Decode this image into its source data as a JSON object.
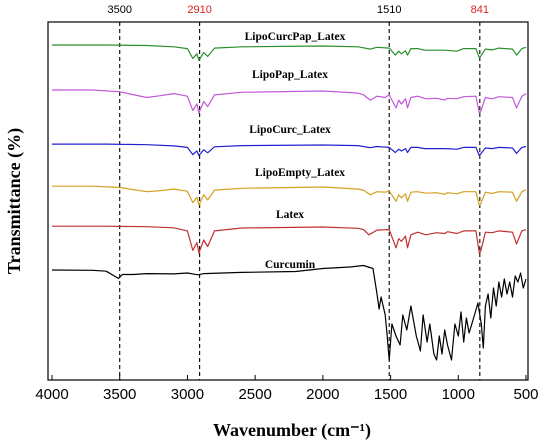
{
  "chart_data": {
    "type": "line",
    "xlabel": "Wavenumber (cm⁻¹)",
    "ylabel": "Transmittance (%)",
    "xlim": [
      4000,
      500
    ],
    "x_reversed": true,
    "x_ticks": [
      "4000",
      "3500",
      "3000",
      "2500",
      "2000",
      "1500",
      "1000",
      "500"
    ],
    "grid": false,
    "legend": "inline labels above each trace",
    "y_values_units": "arbitrary transmittance units, vertically offset traces",
    "reference_lines": [
      {
        "x": 3500,
        "label": "3500",
        "color": "#000000"
      },
      {
        "x": 2910,
        "label": "2910",
        "color": "#e02020"
      },
      {
        "x": 1510,
        "label": "1510",
        "color": "#000000"
      },
      {
        "x": 841,
        "label": "841",
        "color": "#e02020"
      }
    ],
    "series": [
      {
        "name": "LipoCurcPap_Latex",
        "color": "#2a8f2a",
        "points": [
          [
            4000,
            0.4
          ],
          [
            3600,
            0.4
          ],
          [
            3300,
            0.2
          ],
          [
            3100,
            -0.3
          ],
          [
            3000,
            -1.0
          ],
          [
            2960,
            -4.8
          ],
          [
            2930,
            -3.0
          ],
          [
            2915,
            -5.5
          ],
          [
            2880,
            -2.5
          ],
          [
            2850,
            -4.0
          ],
          [
            2800,
            -0.8
          ],
          [
            2600,
            -0.3
          ],
          [
            2000,
            0.0
          ],
          [
            1740,
            -0.3
          ],
          [
            1650,
            -1.2
          ],
          [
            1600,
            -0.5
          ],
          [
            1510,
            -0.8
          ],
          [
            1465,
            -3.5
          ],
          [
            1440,
            -2.0
          ],
          [
            1420,
            -3.0
          ],
          [
            1390,
            -1.8
          ],
          [
            1375,
            -3.5
          ],
          [
            1350,
            -1.0
          ],
          [
            1300,
            -1.0
          ],
          [
            1250,
            -1.6
          ],
          [
            1160,
            -1.6
          ],
          [
            1100,
            -1.6
          ],
          [
            1010,
            -2.0
          ],
          [
            960,
            -1.0
          ],
          [
            870,
            -1.0
          ],
          [
            845,
            -4.5
          ],
          [
            835,
            -4.0
          ],
          [
            800,
            -1.2
          ],
          [
            750,
            -1.5
          ],
          [
            700,
            -0.8
          ],
          [
            600,
            -1.2
          ],
          [
            570,
            -3.5
          ],
          [
            530,
            -1.0
          ],
          [
            500,
            -0.5
          ]
        ]
      },
      {
        "name": "LipoPap_Latex",
        "color": "#c258d8",
        "points": [
          [
            4000,
            0.4
          ],
          [
            3700,
            0.4
          ],
          [
            3500,
            -0.3
          ],
          [
            3300,
            -2.5
          ],
          [
            3200,
            -1.8
          ],
          [
            3100,
            -1.0
          ],
          [
            3000,
            -2.0
          ],
          [
            2960,
            -7.5
          ],
          [
            2930,
            -5.0
          ],
          [
            2915,
            -8.5
          ],
          [
            2880,
            -4.0
          ],
          [
            2850,
            -6.0
          ],
          [
            2800,
            -1.5
          ],
          [
            2600,
            -0.5
          ],
          [
            2000,
            0.0
          ],
          [
            1740,
            -0.8
          ],
          [
            1700,
            -1.5
          ],
          [
            1650,
            -3.5
          ],
          [
            1600,
            -2.0
          ],
          [
            1540,
            -2.5
          ],
          [
            1510,
            -1.5
          ],
          [
            1460,
            -6.5
          ],
          [
            1440,
            -3.5
          ],
          [
            1420,
            -5.0
          ],
          [
            1390,
            -3.0
          ],
          [
            1375,
            -6.5
          ],
          [
            1350,
            -2.5
          ],
          [
            1300,
            -2.0
          ],
          [
            1240,
            -3.0
          ],
          [
            1160,
            -2.8
          ],
          [
            1100,
            -3.5
          ],
          [
            1080,
            -2.8
          ],
          [
            1010,
            -3.0
          ],
          [
            960,
            -2.2
          ],
          [
            870,
            -2.0
          ],
          [
            845,
            -8.5
          ],
          [
            835,
            -8.0
          ],
          [
            800,
            -2.5
          ],
          [
            750,
            -3.0
          ],
          [
            700,
            -2.2
          ],
          [
            600,
            -2.5
          ],
          [
            570,
            -6.5
          ],
          [
            530,
            -2.0
          ],
          [
            500,
            -1.0
          ]
        ]
      },
      {
        "name": "LipoCurc_Latex",
        "color": "#2020d0",
        "points": [
          [
            4000,
            0.3
          ],
          [
            3600,
            0.3
          ],
          [
            3300,
            0.1
          ],
          [
            3100,
            -0.3
          ],
          [
            3000,
            -0.8
          ],
          [
            2960,
            -3.2
          ],
          [
            2930,
            -2.0
          ],
          [
            2915,
            -3.5
          ],
          [
            2880,
            -1.6
          ],
          [
            2850,
            -2.6
          ],
          [
            2800,
            -0.6
          ],
          [
            2600,
            -0.2
          ],
          [
            2000,
            0.0
          ],
          [
            1740,
            -0.2
          ],
          [
            1650,
            -0.9
          ],
          [
            1600,
            -0.5
          ],
          [
            1510,
            -0.8
          ],
          [
            1465,
            -2.5
          ],
          [
            1440,
            -1.4
          ],
          [
            1420,
            -2.0
          ],
          [
            1390,
            -1.2
          ],
          [
            1375,
            -2.5
          ],
          [
            1350,
            -0.8
          ],
          [
            1300,
            -0.8
          ],
          [
            1250,
            -1.2
          ],
          [
            1160,
            -1.2
          ],
          [
            1100,
            -1.2
          ],
          [
            1010,
            -1.4
          ],
          [
            960,
            -0.8
          ],
          [
            870,
            -0.8
          ],
          [
            845,
            -3.5
          ],
          [
            835,
            -3.0
          ],
          [
            800,
            -1.0
          ],
          [
            750,
            -1.2
          ],
          [
            700,
            -0.8
          ],
          [
            600,
            -1.0
          ],
          [
            570,
            -2.8
          ],
          [
            530,
            -0.8
          ],
          [
            500,
            -0.5
          ]
        ]
      },
      {
        "name": "LipoEmpty_Latex",
        "color": "#d4a020",
        "points": [
          [
            4000,
            0.3
          ],
          [
            3700,
            0.3
          ],
          [
            3500,
            -0.2
          ],
          [
            3300,
            -1.8
          ],
          [
            3200,
            -1.4
          ],
          [
            3100,
            -0.8
          ],
          [
            3000,
            -1.6
          ],
          [
            2960,
            -6.0
          ],
          [
            2930,
            -4.0
          ],
          [
            2915,
            -7.0
          ],
          [
            2880,
            -3.0
          ],
          [
            2850,
            -5.0
          ],
          [
            2800,
            -1.2
          ],
          [
            2600,
            -0.5
          ],
          [
            2000,
            0.0
          ],
          [
            1740,
            -0.8
          ],
          [
            1700,
            -1.2
          ],
          [
            1650,
            -3.0
          ],
          [
            1600,
            -1.8
          ],
          [
            1540,
            -2.0
          ],
          [
            1510,
            -1.5
          ],
          [
            1460,
            -5.5
          ],
          [
            1440,
            -3.0
          ],
          [
            1420,
            -4.2
          ],
          [
            1390,
            -2.6
          ],
          [
            1375,
            -5.5
          ],
          [
            1350,
            -2.0
          ],
          [
            1300,
            -1.8
          ],
          [
            1240,
            -2.4
          ],
          [
            1160,
            -2.2
          ],
          [
            1100,
            -2.8
          ],
          [
            1080,
            -2.2
          ],
          [
            1010,
            -2.6
          ],
          [
            960,
            -1.8
          ],
          [
            870,
            -1.8
          ],
          [
            845,
            -7.0
          ],
          [
            835,
            -6.5
          ],
          [
            800,
            -2.0
          ],
          [
            750,
            -2.5
          ],
          [
            700,
            -1.8
          ],
          [
            600,
            -2.0
          ],
          [
            570,
            -5.5
          ],
          [
            530,
            -1.8
          ],
          [
            500,
            -1.0
          ]
        ]
      },
      {
        "name": "Latex",
        "color": "#c03030",
        "points": [
          [
            4000,
            0.3
          ],
          [
            3600,
            0.3
          ],
          [
            3300,
            0.1
          ],
          [
            3100,
            -0.3
          ],
          [
            3000,
            -1.5
          ],
          [
            2960,
            -9.0
          ],
          [
            2930,
            -6.0
          ],
          [
            2915,
            -10.0
          ],
          [
            2880,
            -5.0
          ],
          [
            2850,
            -7.5
          ],
          [
            2800,
            -1.5
          ],
          [
            2600,
            -0.4
          ],
          [
            2000,
            0.0
          ],
          [
            1740,
            -0.5
          ],
          [
            1700,
            -1.0
          ],
          [
            1660,
            -3.0
          ],
          [
            1600,
            -1.2
          ],
          [
            1510,
            -1.0
          ],
          [
            1460,
            -8.0
          ],
          [
            1440,
            -4.5
          ],
          [
            1420,
            -5.5
          ],
          [
            1390,
            -3.5
          ],
          [
            1375,
            -8.0
          ],
          [
            1350,
            -3.0
          ],
          [
            1300,
            -2.0
          ],
          [
            1240,
            -3.0
          ],
          [
            1160,
            -2.2
          ],
          [
            1100,
            -2.5
          ],
          [
            1080,
            -1.8
          ],
          [
            1010,
            -2.5
          ],
          [
            960,
            -1.5
          ],
          [
            870,
            -1.5
          ],
          [
            845,
            -10.0
          ],
          [
            835,
            -9.5
          ],
          [
            800,
            -2.0
          ],
          [
            750,
            -2.2
          ],
          [
            700,
            -1.5
          ],
          [
            600,
            -2.0
          ],
          [
            570,
            -6.5
          ],
          [
            530,
            -1.5
          ],
          [
            500,
            -1.0
          ]
        ]
      },
      {
        "name": "Curcumin",
        "color": "#000000",
        "points": [
          [
            4000,
            0.0
          ],
          [
            3700,
            -0.1
          ],
          [
            3600,
            -0.4
          ],
          [
            3510,
            -2.8
          ],
          [
            3480,
            -1.5
          ],
          [
            3400,
            -1.5
          ],
          [
            3300,
            -1.2
          ],
          [
            3100,
            -1.3
          ],
          [
            3000,
            -1.0
          ],
          [
            2950,
            -1.4
          ],
          [
            2920,
            -1.6
          ],
          [
            2880,
            -1.2
          ],
          [
            2600,
            -0.8
          ],
          [
            2200,
            -0.5
          ],
          [
            2000,
            0.5
          ],
          [
            1800,
            1.0
          ],
          [
            1700,
            1.5
          ],
          [
            1630,
            0.5
          ],
          [
            1600,
            -8.0
          ],
          [
            1585,
            -13.0
          ],
          [
            1570,
            -9.0
          ],
          [
            1540,
            -15.0
          ],
          [
            1525,
            -22.0
          ],
          [
            1510,
            -30.0
          ],
          [
            1490,
            -18.0
          ],
          [
            1460,
            -22.0
          ],
          [
            1430,
            -25.0
          ],
          [
            1410,
            -15.0
          ],
          [
            1380,
            -20.0
          ],
          [
            1350,
            -12.0
          ],
          [
            1310,
            -22.0
          ],
          [
            1280,
            -27.0
          ],
          [
            1260,
            -15.0
          ],
          [
            1230,
            -24.0
          ],
          [
            1210,
            -18.0
          ],
          [
            1180,
            -28.0
          ],
          [
            1160,
            -30.0
          ],
          [
            1140,
            -22.0
          ],
          [
            1120,
            -28.0
          ],
          [
            1100,
            -20.0
          ],
          [
            1080,
            -25.0
          ],
          [
            1050,
            -30.0
          ],
          [
            1025,
            -18.0
          ],
          [
            1000,
            -22.0
          ],
          [
            980,
            -14.0
          ],
          [
            960,
            -24.0
          ],
          [
            940,
            -16.0
          ],
          [
            920,
            -21.0
          ],
          [
            880,
            -15.0
          ],
          [
            855,
            -11.0
          ],
          [
            830,
            -18.0
          ],
          [
            815,
            -26.0
          ],
          [
            800,
            -12.0
          ],
          [
            780,
            -8.0
          ],
          [
            760,
            -16.0
          ],
          [
            740,
            -6.0
          ],
          [
            720,
            -12.0
          ],
          [
            700,
            -4.0
          ],
          [
            680,
            -9.0
          ],
          [
            660,
            -3.0
          ],
          [
            640,
            -8.0
          ],
          [
            620,
            -4.0
          ],
          [
            600,
            -9.0
          ],
          [
            580,
            -2.0
          ],
          [
            560,
            -4.0
          ],
          [
            540,
            -1.0
          ],
          [
            520,
            -6.0
          ],
          [
            500,
            -3.0
          ]
        ]
      }
    ]
  }
}
